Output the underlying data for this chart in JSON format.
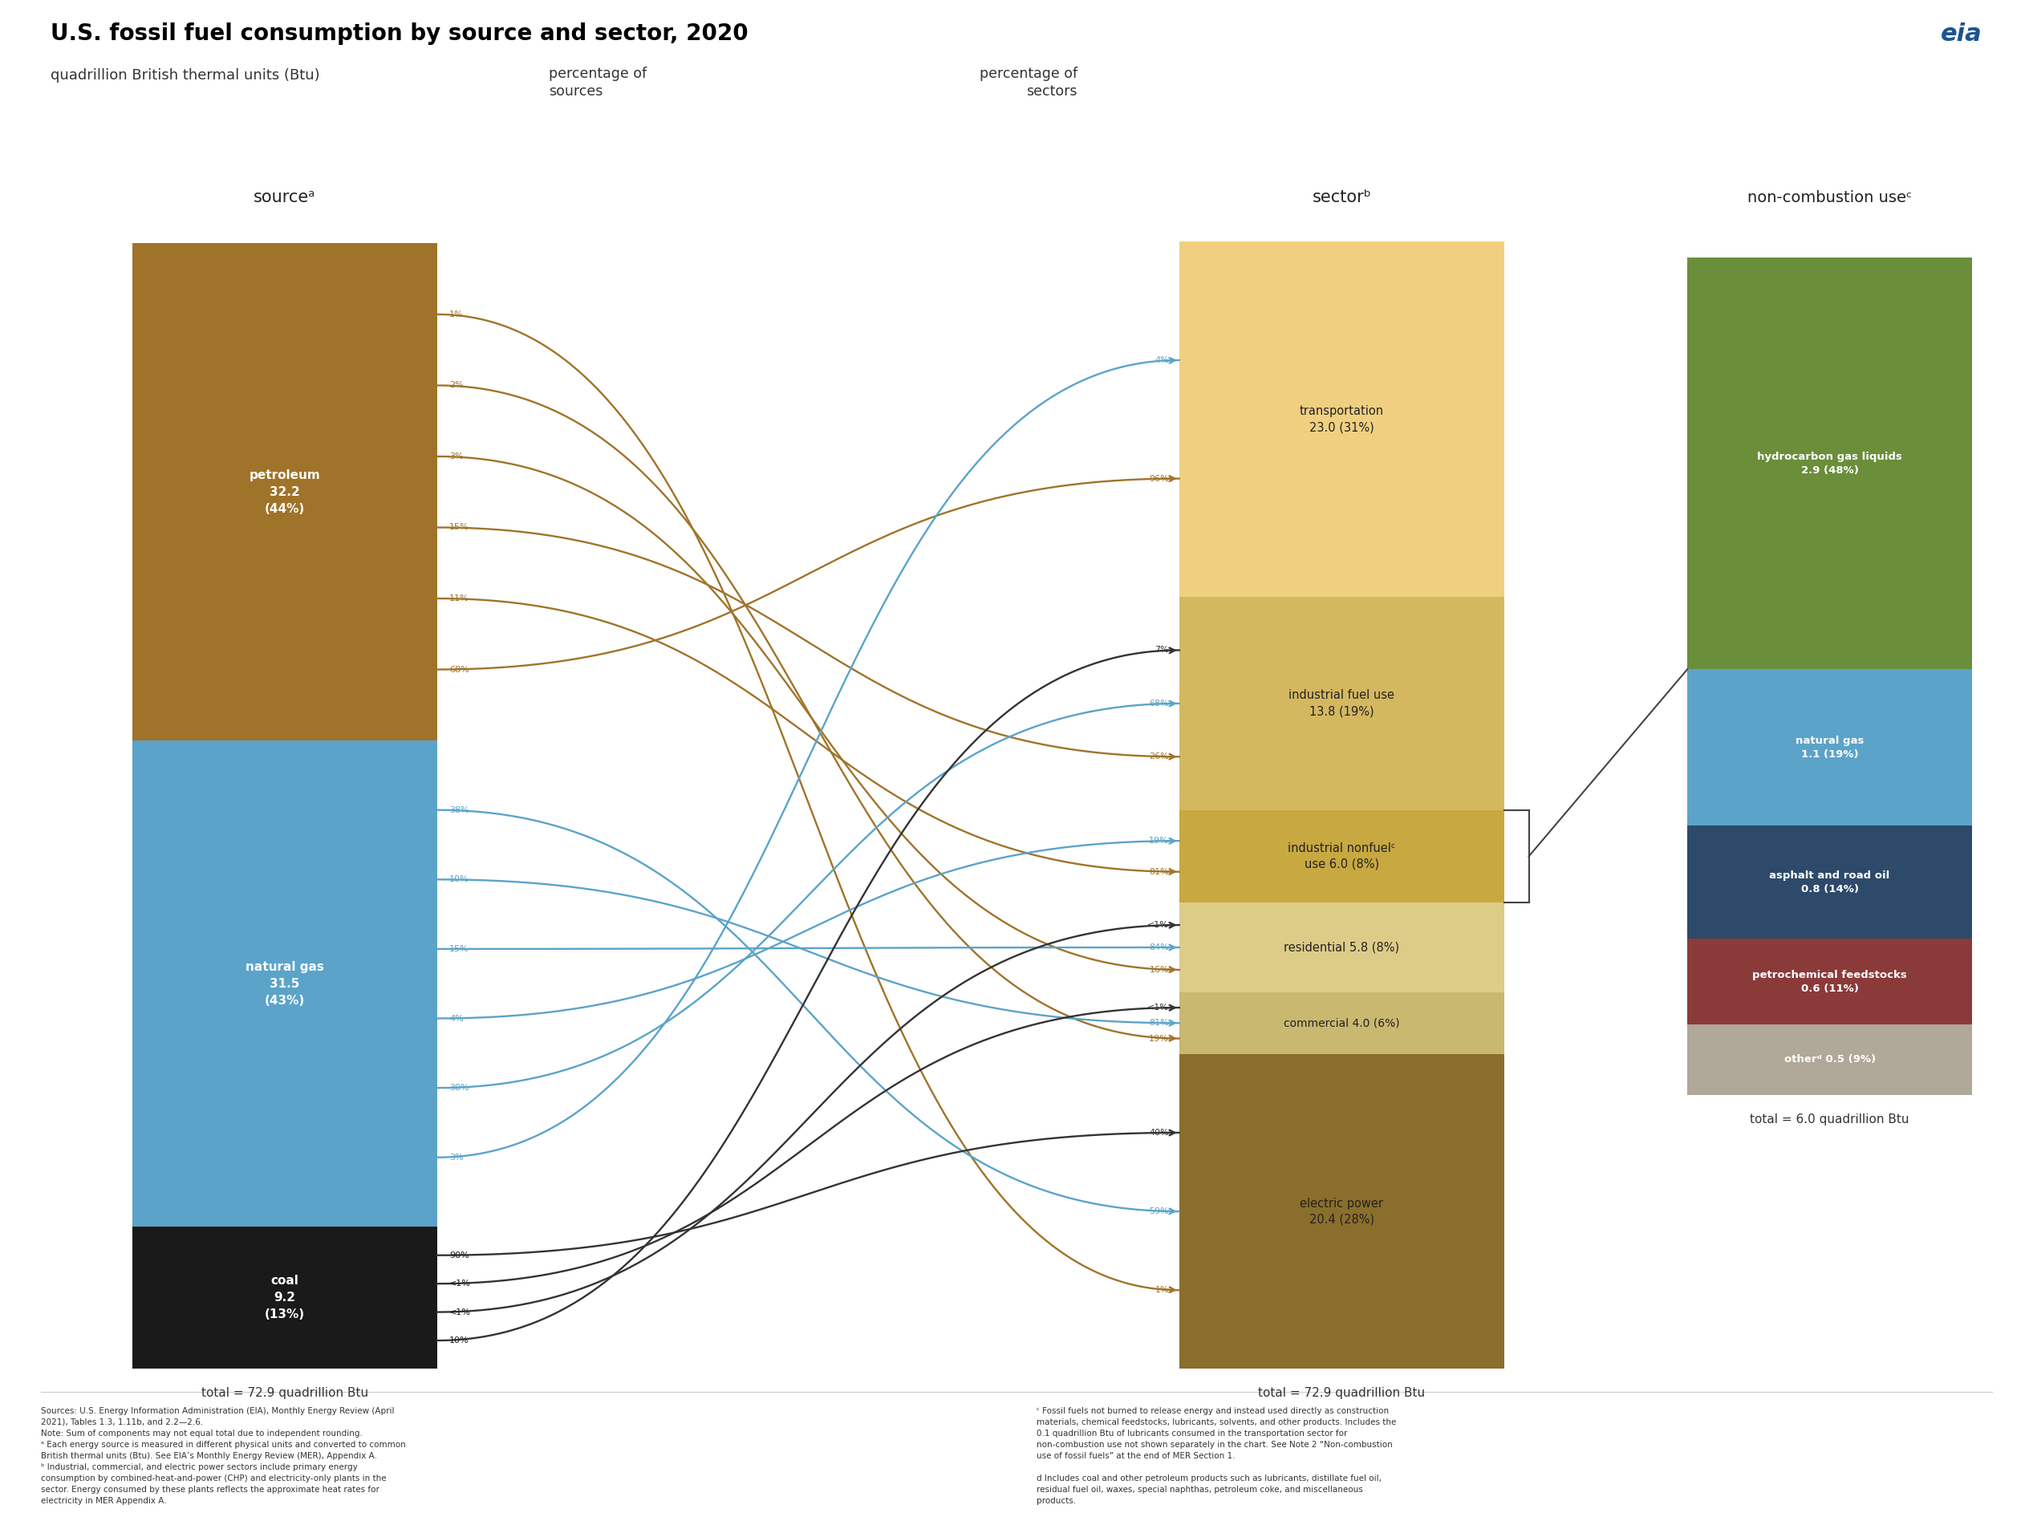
{
  "title": "U.S. fossil fuel consumption by source and sector, 2020",
  "subtitle": "quadrillion British thermal units (Btu)",
  "bg_color": "#ffffff",
  "src_values": [
    32.2,
    31.5,
    9.2
  ],
  "src_colors": [
    "#A0732A",
    "#5BA3C9",
    "#1A1A1A"
  ],
  "src_labels": [
    "petroleum\n32.2\n(44%)",
    "natural gas\n31.5\n(43%)",
    "coal\n9.2\n(13%)"
  ],
  "sec_values": [
    23.0,
    13.8,
    6.0,
    5.8,
    4.0,
    20.4
  ],
  "sec_colors": [
    "#F0D080",
    "#D4B860",
    "#C8A840",
    "#DDCC88",
    "#C9B870",
    "#8B6E2C"
  ],
  "sec_labels": [
    "transportation\n23.0 (31%)",
    "industrial fuel use\n13.8 (19%)",
    "industrial nonfuelᶜ\nuse 6.0 (8%)",
    "residential 5.8 (8%)",
    "commercial 4.0 (6%)",
    "electric power\n20.4 (28%)"
  ],
  "nc_values": [
    2.9,
    1.1,
    0.8,
    0.6,
    0.5
  ],
  "nc_colors": [
    "#6B8E3A",
    "#5BA3C9",
    "#2D4A6A",
    "#8B3A3A",
    "#B0A898"
  ],
  "nc_labels": [
    "hydrocarbon gas liquids\n2.9 (48%)",
    "natural gas\n1.1 (19%)",
    "asphalt and road oil\n0.8 (14%)",
    "petrochemical feedstocks\n0.6 (11%)",
    "otherᵈ 0.5 (9%)"
  ],
  "total": 72.9,
  "nc_total": 6.0,
  "source_total_label": "total = 72.9 quadrillion Btu",
  "sector_total_label": "total = 72.9 quadrillion Btu",
  "nc_total_label": "total = 6.0 quadrillion Btu",
  "flows": [
    [
      0,
      0,
      "#A0732A"
    ],
    [
      0,
      2,
      "#A0732A"
    ],
    [
      0,
      1,
      "#A0732A"
    ],
    [
      0,
      3,
      "#A0732A"
    ],
    [
      0,
      4,
      "#A0732A"
    ],
    [
      0,
      5,
      "#A0732A"
    ],
    [
      1,
      0,
      "#5BA3C9"
    ],
    [
      1,
      1,
      "#5BA3C9"
    ],
    [
      1,
      2,
      "#5BA3C9"
    ],
    [
      1,
      3,
      "#5BA3C9"
    ],
    [
      1,
      4,
      "#5BA3C9"
    ],
    [
      1,
      5,
      "#5BA3C9"
    ],
    [
      2,
      1,
      "#333333"
    ],
    [
      2,
      3,
      "#333333"
    ],
    [
      2,
      4,
      "#333333"
    ],
    [
      2,
      5,
      "#333333"
    ]
  ],
  "left_pcts": [
    [
      "68%",
      "#A0732A",
      0,
      0
    ],
    [
      "11%",
      "#A0732A",
      0,
      2
    ],
    [
      "15%",
      "#A0732A",
      0,
      1
    ],
    [
      "3%",
      "#A0732A",
      0,
      3
    ],
    [
      "2%",
      "#A0732A",
      0,
      4
    ],
    [
      "1%",
      "#A0732A",
      0,
      5
    ],
    [
      "3%",
      "#5BA3C9",
      1,
      0
    ],
    [
      "30%",
      "#5BA3C9",
      1,
      1
    ],
    [
      "4%",
      "#5BA3C9",
      1,
      2
    ],
    [
      "15%",
      "#5BA3C9",
      1,
      3
    ],
    [
      "10%",
      "#5BA3C9",
      1,
      4
    ],
    [
      "38%",
      "#5BA3C9",
      1,
      5
    ],
    [
      "10%",
      "#1A1A1A",
      2,
      1
    ],
    [
      "<1%",
      "#1A1A1A",
      2,
      3
    ],
    [
      "<1%",
      "#1A1A1A",
      2,
      4
    ],
    [
      "90%",
      "#1A1A1A",
      2,
      5
    ]
  ],
  "right_pcts": [
    [
      "96%",
      "#A0732A",
      0,
      0
    ],
    [
      "4%",
      "#5BA3C9",
      0,
      1
    ],
    [
      "26%",
      "#A0732A",
      1,
      0
    ],
    [
      "68%",
      "#5BA3C9",
      1,
      1
    ],
    [
      "7%",
      "#333333",
      1,
      2
    ],
    [
      "81%",
      "#A0732A",
      2,
      0
    ],
    [
      "19%",
      "#5BA3C9",
      2,
      1
    ],
    [
      "<1%",
      "#333333",
      2,
      2
    ],
    [
      "16%",
      "#A0732A",
      3,
      0
    ],
    [
      "84%",
      "#5BA3C9",
      3,
      1
    ],
    [
      "<1%",
      "#333333",
      3,
      2
    ],
    [
      "19%",
      "#A0732A",
      4,
      0
    ],
    [
      "81%",
      "#5BA3C9",
      4,
      1
    ],
    [
      "<1%",
      "#333333",
      4,
      2
    ],
    [
      "1%",
      "#A0732A",
      5,
      0
    ],
    [
      "59%",
      "#5BA3C9",
      5,
      1
    ],
    [
      "40%",
      "#333333",
      5,
      2
    ]
  ],
  "footnotes_left": "Sources: U.S. Energy Information Administration (EIA), Monthly Energy Review (April\n2021), Tables 1.3, 1.11b, and 2.2—2.6.\nNote: Sum of components may not equal total due to independent rounding.\nᵃ Each energy source is measured in different physical units and converted to common\nBritish thermal units (Btu). See EIA’s Monthly Energy Review (MER), Appendix A.\nᵇ Industrial, commercial, and electric power sectors include primary energy\nconsumption by combined-heat-and-power (CHP) and electricity-only plants in the\nsector. Energy consumed by these plants reflects the approximate heat rates for\nelectricity in MER Appendix A.",
  "footnotes_right": "ᶜ Fossil fuels not burned to release energy and instead used directly as construction\nmaterials, chemical feedstocks, lubricants, solvents, and other products. Includes the\n0.1 quadrillion Btu of lubricants consumed in the transportation sector for\nnon-combustion use not shown separately in the chart. See Note 2 “Non-combustion\nuse of fossil fuels” at the end of MER Section 1.\n\nd Includes coal and other petroleum products such as lubricants, distillate fuel oil,\nresidual fuel oil, waxes, special naphthas, petroleum coke, and miscellaneous\nproducts."
}
